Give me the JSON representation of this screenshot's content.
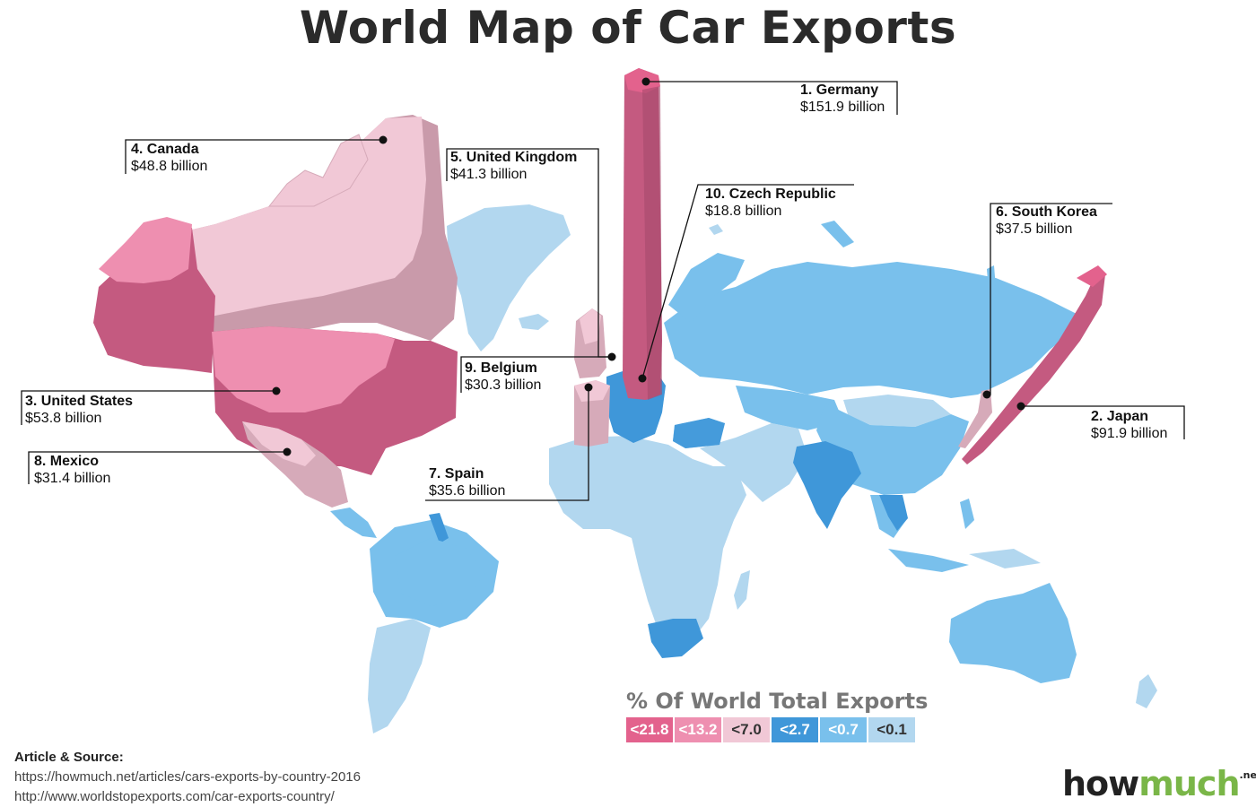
{
  "title": "World Map of Car Exports",
  "countries": [
    {
      "rank": "1. Germany",
      "value": "$151.9 billion"
    },
    {
      "rank": "2. Japan",
      "value": "$91.9 billion"
    },
    {
      "rank": "3. United States",
      "value": "$53.8 billion"
    },
    {
      "rank": "4. Canada",
      "value": "$48.8 billion"
    },
    {
      "rank": "5. United Kingdom",
      "value": "$41.3 billion"
    },
    {
      "rank": "6. South Korea",
      "value": "$37.5 billion"
    },
    {
      "rank": "7. Spain",
      "value": "$35.6 billion"
    },
    {
      "rank": "8. Mexico",
      "value": "$31.4 billion"
    },
    {
      "rank": "9. Belgium",
      "value": "$30.3 billion"
    },
    {
      "rank": "10. Czech Republic",
      "value": "$18.8 billion"
    }
  ],
  "legend": {
    "title": "% Of World Total Exports",
    "items": [
      {
        "label": "<21.8",
        "color": "#e3628d"
      },
      {
        "label": "<13.2",
        "color": "#ee8fb0"
      },
      {
        "label": "<7.0",
        "color": "#f1c8d6"
      },
      {
        "label": "<2.7",
        "color": "#3f97d9"
      },
      {
        "label": "<0.7",
        "color": "#79c0ec"
      },
      {
        "label": "<0.1",
        "color": "#b2d7ef"
      }
    ]
  },
  "source": {
    "heading": "Article & Source:",
    "url1": "https://howmuch.net/articles/cars-exports-by-country-2016",
    "url2": "http://www.worldstopexports.com/car-exports-country/"
  },
  "logo": {
    "how": "how",
    "much": "much",
    "net": ".net"
  }
}
